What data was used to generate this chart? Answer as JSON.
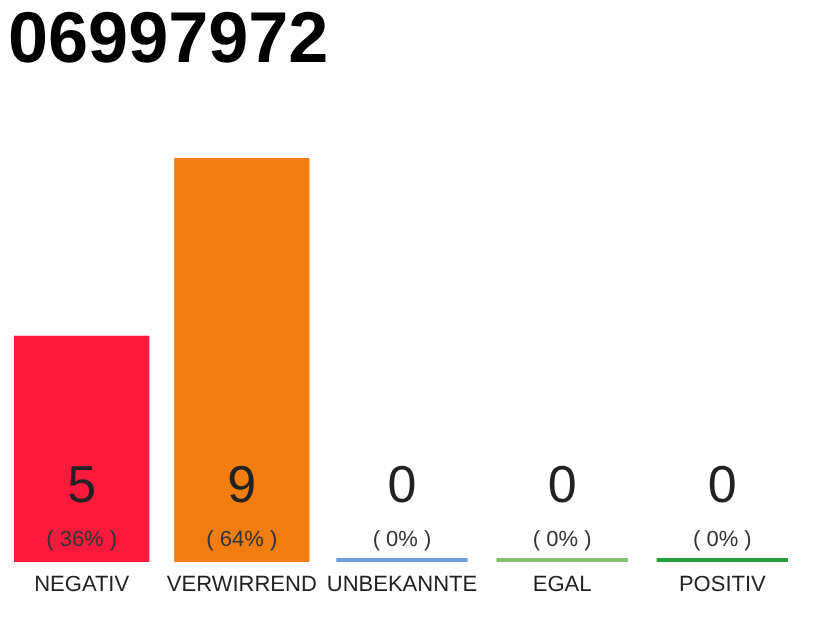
{
  "chart_data": {
    "type": "bar",
    "title": "06997972",
    "categories": [
      "NEGATIV",
      "VERWIRREND",
      "UNBEKANNTE",
      "EGAL",
      "POSITIV"
    ],
    "values": [
      5,
      9,
      0,
      0,
      0
    ],
    "colors": [
      "#ff1a3c",
      "#f07d0d",
      "#6f9fe0",
      "#7cc36a",
      "#22a03c"
    ],
    "data_labels": true,
    "annotations": [
      "( 36% )",
      "( 64% )",
      "( 0% )",
      "( 0% )",
      "( 0% )"
    ]
  }
}
